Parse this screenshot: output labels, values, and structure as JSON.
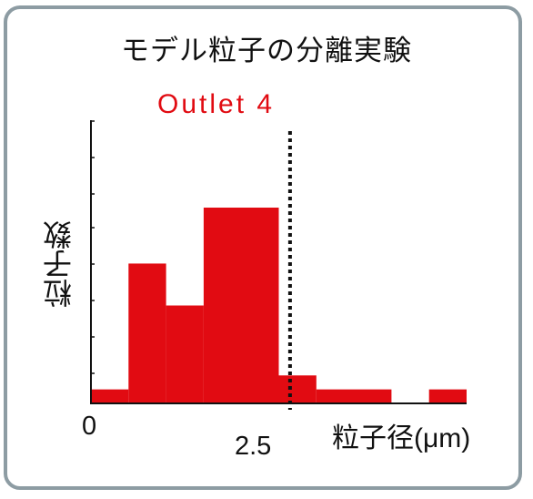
{
  "chart_data": {
    "type": "bar",
    "title": "モデル粒子の分離実験",
    "subtitle": "Outlet 4",
    "ylabel": "粒子数",
    "xlabel": "粒子径(μm)",
    "x_ticks": [
      {
        "value": 0,
        "label": "0"
      },
      {
        "value": 2.5,
        "label": "2.5"
      }
    ],
    "xlim": [
      0,
      5.0
    ],
    "ylim": [
      0,
      14
    ],
    "bins": [
      {
        "x0": 0.0,
        "x1": 0.5,
        "value": 1
      },
      {
        "x0": 0.5,
        "x1": 1.0,
        "value": 10
      },
      {
        "x0": 1.0,
        "x1": 1.5,
        "value": 7
      },
      {
        "x0": 1.5,
        "x1": 2.5,
        "value": 14
      },
      {
        "x0": 2.5,
        "x1": 3.0,
        "value": 2
      },
      {
        "x0": 3.0,
        "x1": 4.0,
        "value": 1
      },
      {
        "x0": 4.0,
        "x1": 4.5,
        "value": 0
      },
      {
        "x0": 4.5,
        "x1": 5.0,
        "value": 1
      }
    ],
    "cutoff_line": {
      "x": 2.65,
      "style": "dotted"
    },
    "colors": {
      "bars": "#e10b12",
      "subtitle": "#e10b12",
      "axis": "#111111",
      "frame": "#8d9ca3"
    },
    "grid": false
  }
}
